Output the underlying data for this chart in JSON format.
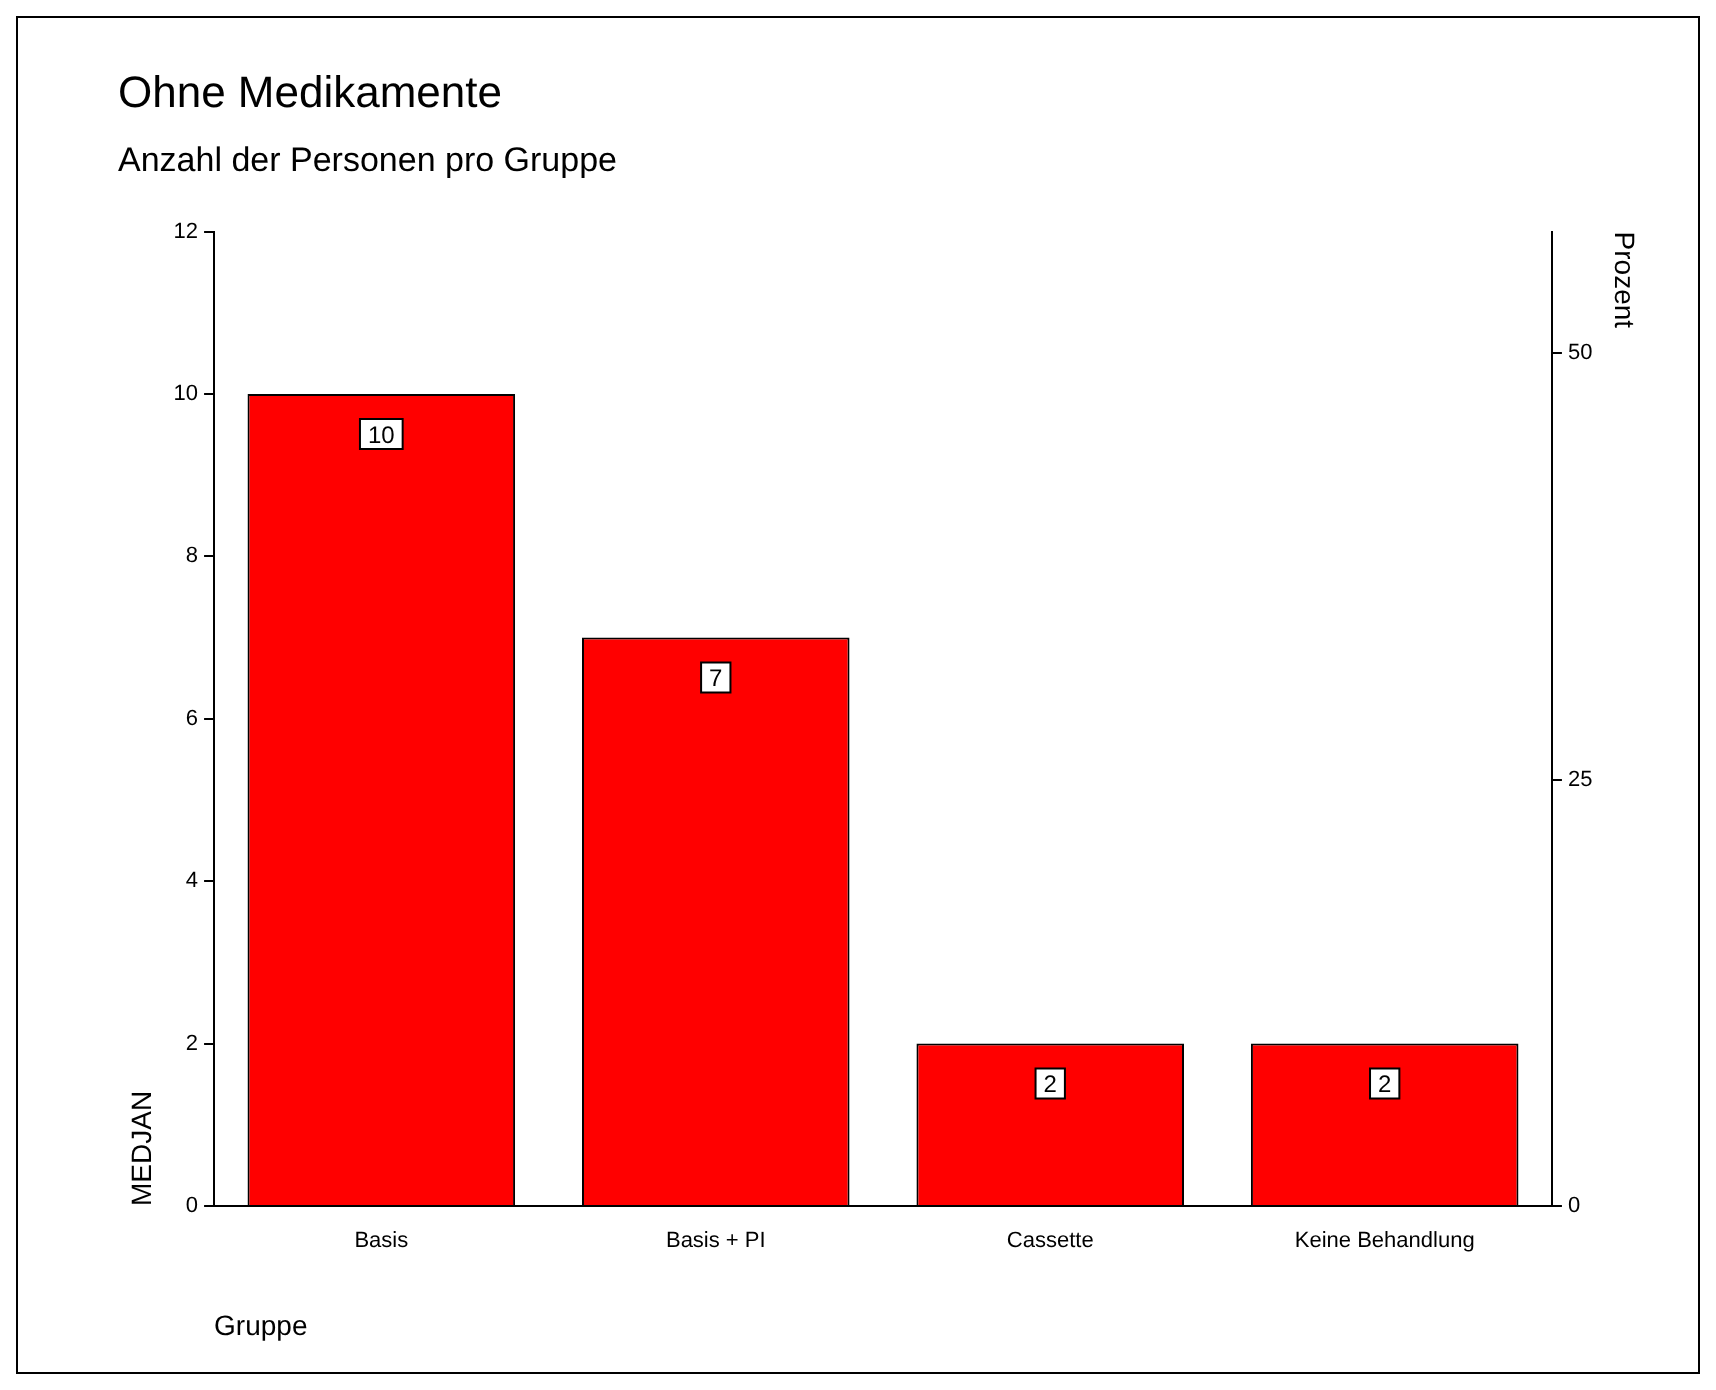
{
  "chart_data": {
    "type": "bar",
    "title": "Ohne Medikamente",
    "subtitle": "Anzahl der Personen pro Gruppe",
    "xlabel": "Gruppe",
    "ylabel": "MEDJAN",
    "y2label": "Prozent",
    "categories": [
      "Basis",
      "Basis + PI",
      "Cassette",
      "Keine Behandlung"
    ],
    "series": [
      {
        "color": "#ff0000",
        "values": [
          10,
          7,
          2,
          2
        ]
      }
    ],
    "ylim": [
      0,
      12
    ],
    "yticks": [
      0,
      2,
      4,
      6,
      8,
      10,
      12
    ],
    "y2lim": [
      0,
      57.14
    ],
    "y2ticks": [
      0,
      25,
      50
    ],
    "data_labels": true,
    "grid": false,
    "legend": false
  }
}
